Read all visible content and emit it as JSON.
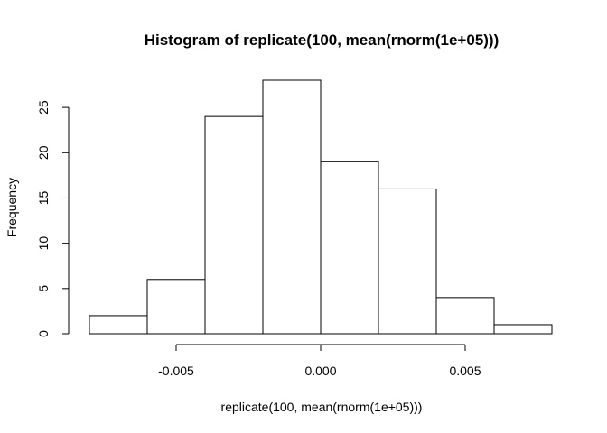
{
  "chart_data": {
    "type": "bar",
    "title": "Histogram of replicate(100, mean(rnorm(1e+05)))",
    "xlabel": "replicate(100, mean(rnorm(1e+05)))",
    "ylabel": "Frequency",
    "bin_edges": [
      -0.008,
      -0.006,
      -0.004,
      -0.002,
      0.0,
      0.002,
      0.004,
      0.006,
      0.008
    ],
    "values": [
      2,
      6,
      24,
      28,
      19,
      16,
      4,
      1
    ],
    "xticks": [
      -0.005,
      0.0,
      0.005
    ],
    "xtick_labels": [
      "-0.005",
      "0.000",
      "0.005"
    ],
    "yticks": [
      0,
      5,
      10,
      15,
      20,
      25
    ],
    "ytick_labels": [
      "0",
      "5",
      "10",
      "15",
      "20",
      "25"
    ],
    "xlim": [
      -0.008,
      0.008
    ],
    "ylim": [
      0,
      28
    ],
    "grid": false,
    "bar_fill": "#ffffff",
    "bar_stroke": "#000000"
  }
}
